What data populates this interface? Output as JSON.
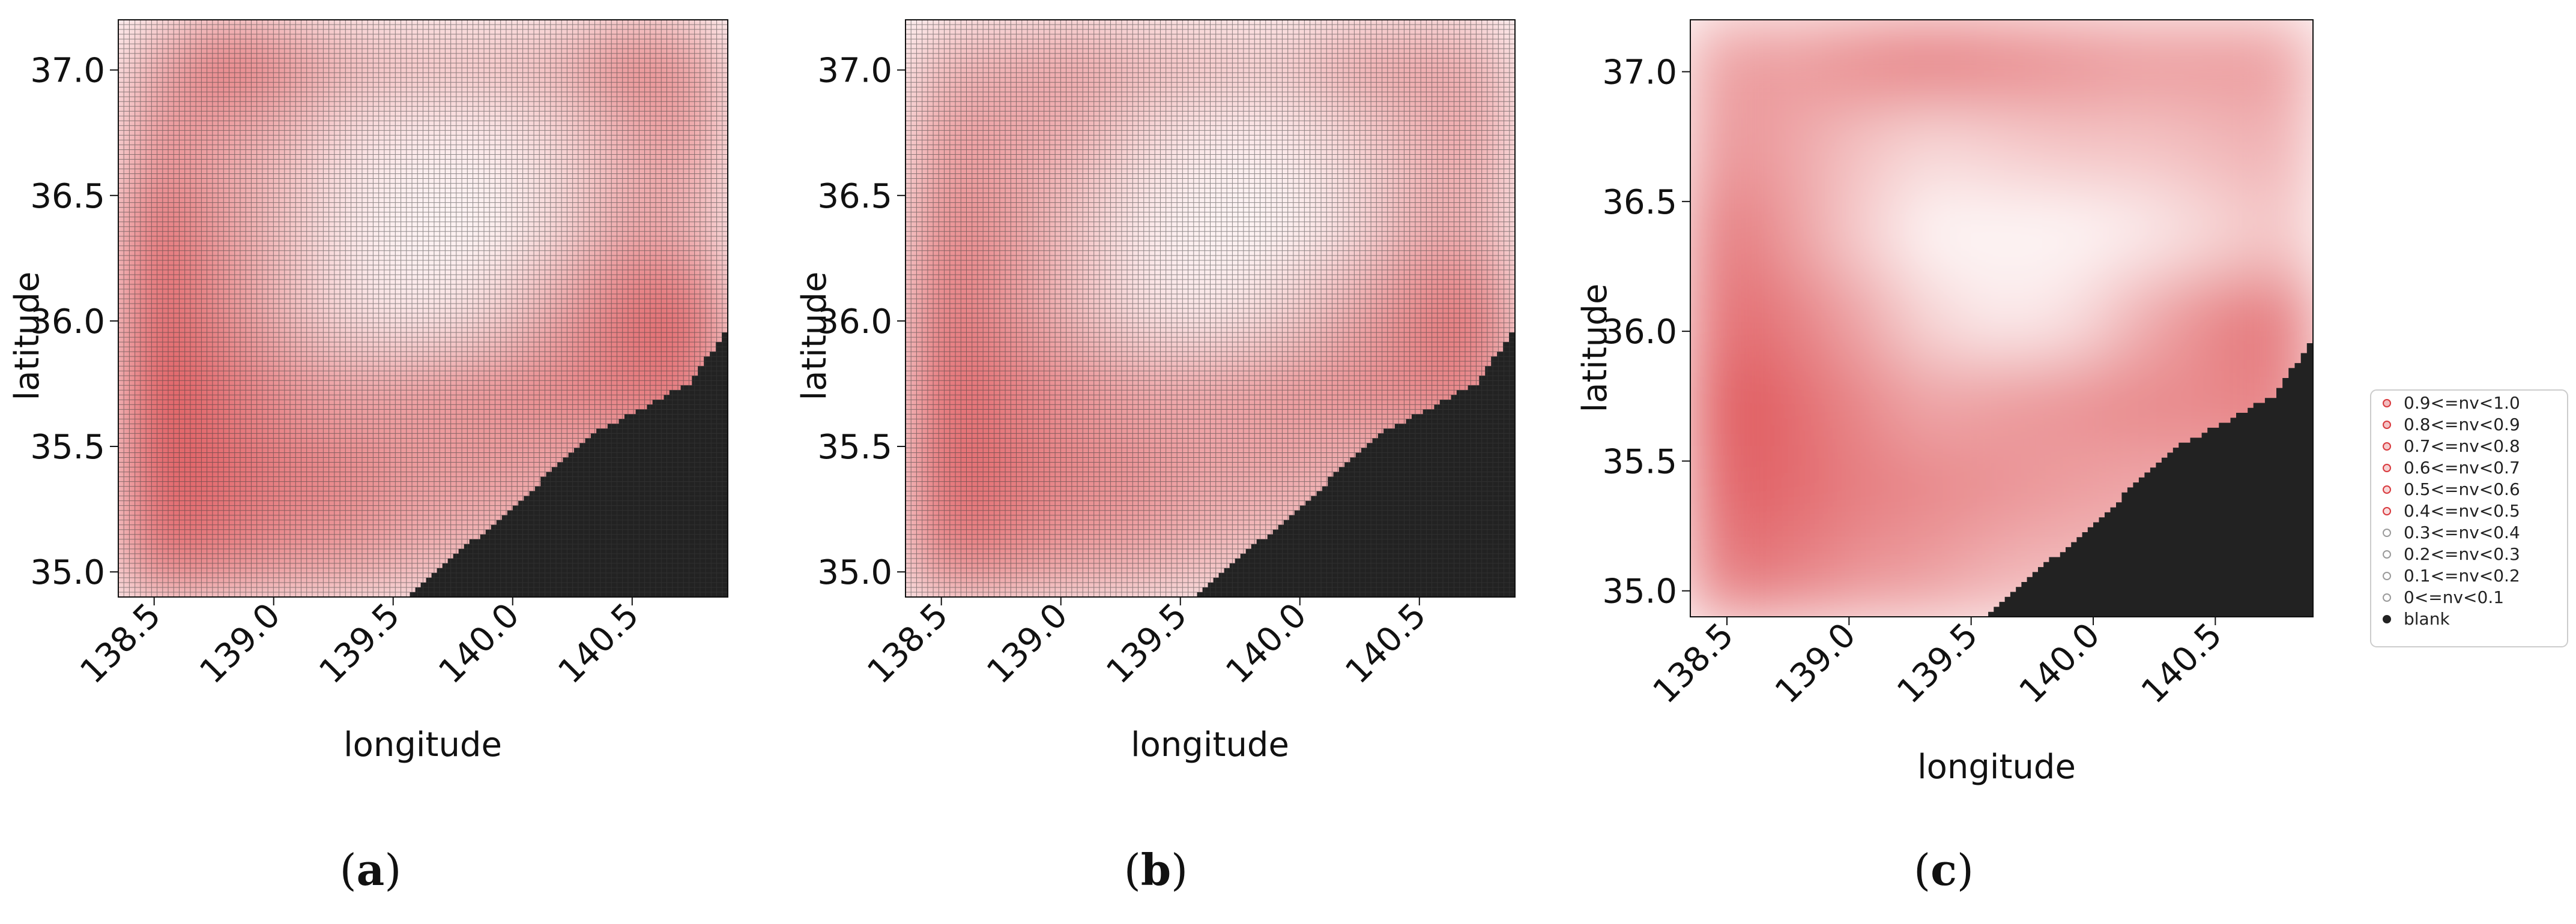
{
  "chart_data": [
    {
      "type": "heatmap",
      "panel_label": {
        "open": "(",
        "letter": "a",
        "close": ")"
      },
      "xlabel": "longitude",
      "ylabel": "latitude",
      "xlim": [
        138.35,
        140.9
      ],
      "ylim": [
        34.9,
        37.2
      ],
      "xticks": [
        138.5,
        139.0,
        139.5,
        140.0,
        140.5
      ],
      "xtick_labels": [
        "138.5",
        "139.0",
        "139.5",
        "140.0",
        "140.5"
      ],
      "yticks": [
        35.0,
        35.5,
        36.0,
        36.5,
        37.0
      ],
      "ytick_labels": [
        "35.0",
        "35.5",
        "36.0",
        "36.5",
        "37.0"
      ],
      "grid": true,
      "grid_cells": [
        110,
        120
      ],
      "blank_region_boundary": [
        [
          139.57,
          34.9
        ],
        [
          140.0,
          35.25
        ],
        [
          140.35,
          35.55
        ],
        [
          140.75,
          35.75
        ],
        [
          140.9,
          35.95
        ]
      ],
      "intensity_profile": [
        [
          0.4,
          0.7,
          0.55,
          0.35,
          0.3,
          0.3,
          0.35,
          0.6,
          0.5
        ],
        [
          0.55,
          0.45,
          0.35,
          0.15,
          0.1,
          0.1,
          0.2,
          0.4,
          0.5
        ],
        [
          0.75,
          0.5,
          0.3,
          0.1,
          0.05,
          0.05,
          0.2,
          0.45,
          0.4
        ],
        [
          0.8,
          0.6,
          0.35,
          0.15,
          0.1,
          0.2,
          0.45,
          0.7,
          0.75
        ],
        [
          0.85,
          0.7,
          0.55,
          0.45,
          0.5,
          0.55,
          0.6,
          0.65,
          0.7
        ],
        [
          0.8,
          0.75,
          0.65,
          0.6,
          0.5,
          0.5,
          0.45,
          0.45,
          0.45
        ],
        [
          0.7,
          0.65,
          0.55,
          0.5,
          0.4,
          0.35,
          0.35,
          0.35,
          0.35
        ]
      ]
    },
    {
      "type": "heatmap",
      "panel_label": {
        "open": "(",
        "letter": "b",
        "close": ")"
      },
      "xlabel": "longitude",
      "ylabel": "latitude",
      "xlim": [
        138.35,
        140.9
      ],
      "ylim": [
        34.9,
        37.2
      ],
      "xticks": [
        138.5,
        139.0,
        139.5,
        140.0,
        140.5
      ],
      "xtick_labels": [
        "138.5",
        "139.0",
        "139.5",
        "140.0",
        "140.5"
      ],
      "yticks": [
        35.0,
        35.5,
        36.0,
        36.5,
        37.0
      ],
      "ytick_labels": [
        "35.0",
        "35.5",
        "36.0",
        "36.5",
        "37.0"
      ],
      "grid": true,
      "grid_cells": [
        110,
        120
      ],
      "blank_region_boundary": [
        [
          139.57,
          34.9
        ],
        [
          140.0,
          35.25
        ],
        [
          140.35,
          35.55
        ],
        [
          140.75,
          35.75
        ],
        [
          140.9,
          35.95
        ]
      ],
      "intensity_profile": [
        [
          0.35,
          0.4,
          0.45,
          0.35,
          0.3,
          0.25,
          0.4,
          0.45,
          0.4
        ],
        [
          0.5,
          0.45,
          0.4,
          0.2,
          0.1,
          0.1,
          0.2,
          0.35,
          0.45
        ],
        [
          0.6,
          0.5,
          0.3,
          0.1,
          0.05,
          0.05,
          0.15,
          0.4,
          0.4
        ],
        [
          0.7,
          0.55,
          0.35,
          0.15,
          0.1,
          0.2,
          0.4,
          0.6,
          0.7
        ],
        [
          0.75,
          0.65,
          0.55,
          0.45,
          0.45,
          0.5,
          0.55,
          0.6,
          0.65
        ],
        [
          0.75,
          0.7,
          0.6,
          0.55,
          0.45,
          0.45,
          0.4,
          0.4,
          0.4
        ],
        [
          0.65,
          0.6,
          0.5,
          0.45,
          0.35,
          0.3,
          0.3,
          0.3,
          0.3
        ]
      ]
    },
    {
      "type": "heatmap",
      "panel_label": {
        "open": "(",
        "letter": "c",
        "close": ")"
      },
      "xlabel": "longitude",
      "ylabel": "latitude",
      "xlim": [
        138.35,
        140.9
      ],
      "ylim": [
        34.9,
        37.2
      ],
      "xticks": [
        138.5,
        139.0,
        139.5,
        140.0,
        140.5
      ],
      "xtick_labels": [
        "138.5",
        "139.0",
        "139.5",
        "140.0",
        "140.5"
      ],
      "yticks": [
        35.0,
        35.5,
        36.0,
        36.5,
        37.0
      ],
      "ytick_labels": [
        "35.0",
        "35.5",
        "36.0",
        "36.5",
        "37.0"
      ],
      "grid": false,
      "grid_cells": [
        110,
        120
      ],
      "blank_region_boundary": [
        [
          139.57,
          34.9
        ],
        [
          140.0,
          35.25
        ],
        [
          140.35,
          35.55
        ],
        [
          140.75,
          35.75
        ],
        [
          140.9,
          35.95
        ]
      ],
      "intensity_profile": [
        [
          0.5,
          0.5,
          0.6,
          0.65,
          0.6,
          0.55,
          0.5,
          0.5,
          0.5
        ],
        [
          0.55,
          0.45,
          0.3,
          0.2,
          0.25,
          0.3,
          0.3,
          0.35,
          0.4
        ],
        [
          0.7,
          0.5,
          0.25,
          0.05,
          0.05,
          0.05,
          0.1,
          0.2,
          0.3
        ],
        [
          0.75,
          0.65,
          0.45,
          0.2,
          0.1,
          0.15,
          0.4,
          0.6,
          0.7
        ],
        [
          0.85,
          0.75,
          0.6,
          0.45,
          0.5,
          0.55,
          0.6,
          0.6,
          0.65
        ],
        [
          0.8,
          0.75,
          0.65,
          0.6,
          0.55,
          0.5,
          0.45,
          0.45,
          0.45
        ],
        [
          0.7,
          0.65,
          0.55,
          0.5,
          0.4,
          0.35,
          0.35,
          0.35,
          0.35
        ]
      ]
    }
  ],
  "legend": {
    "placement": "right",
    "items": [
      {
        "label": "0.9<=nv<1.0",
        "nv": 0.95,
        "kind": "red"
      },
      {
        "label": "0.8<=nv<0.9",
        "nv": 0.85,
        "kind": "red"
      },
      {
        "label": "0.7<=nv<0.8",
        "nv": 0.75,
        "kind": "red"
      },
      {
        "label": "0.6<=nv<0.7",
        "nv": 0.65,
        "kind": "red"
      },
      {
        "label": "0.5<=nv<0.6",
        "nv": 0.55,
        "kind": "red"
      },
      {
        "label": "0.4<=nv<0.5",
        "nv": 0.45,
        "kind": "red"
      },
      {
        "label": "0.3<=nv<0.4",
        "nv": 0.35,
        "kind": "gray"
      },
      {
        "label": "0.2<=nv<0.3",
        "nv": 0.25,
        "kind": "gray"
      },
      {
        "label": "0.1<=nv<0.2",
        "nv": 0.15,
        "kind": "gray"
      },
      {
        "label": "0<=nv<0.1",
        "nv": 0.05,
        "kind": "gray"
      },
      {
        "label": "blank",
        "nv": null,
        "kind": "blank"
      }
    ]
  },
  "colors": {
    "high": "#d93a3e",
    "low": "#ffffff",
    "blank": "#222222",
    "grid": "#3a3a3a",
    "legend_gray": "#9a9a9a",
    "frame": "#111111"
  }
}
